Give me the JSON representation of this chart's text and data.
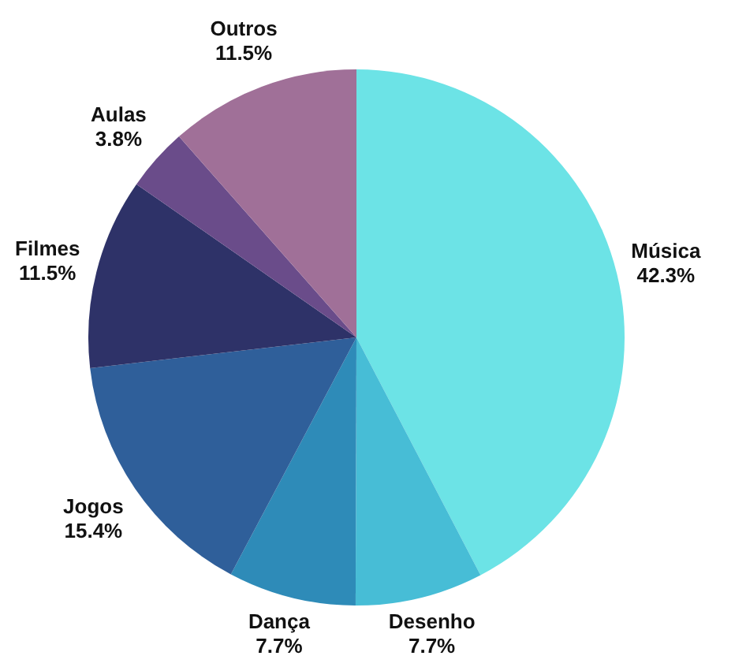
{
  "chart_data": {
    "type": "pie",
    "categories": [
      "Música",
      "Desenho",
      "Dança",
      "Jogos",
      "Filmes",
      "Aulas",
      "Outros"
    ],
    "values": [
      42.3,
      7.7,
      7.7,
      15.4,
      11.5,
      3.8,
      11.5
    ],
    "value_labels": [
      "42.3%",
      "7.7%",
      "7.7%",
      "15.4%",
      "11.5%",
      "3.8%",
      "11.5%"
    ],
    "colors": [
      "#6ce3e6",
      "#47bdd6",
      "#2e8bb8",
      "#2f5f9a",
      "#2e3268",
      "#6a4c8a",
      "#a07098"
    ]
  }
}
